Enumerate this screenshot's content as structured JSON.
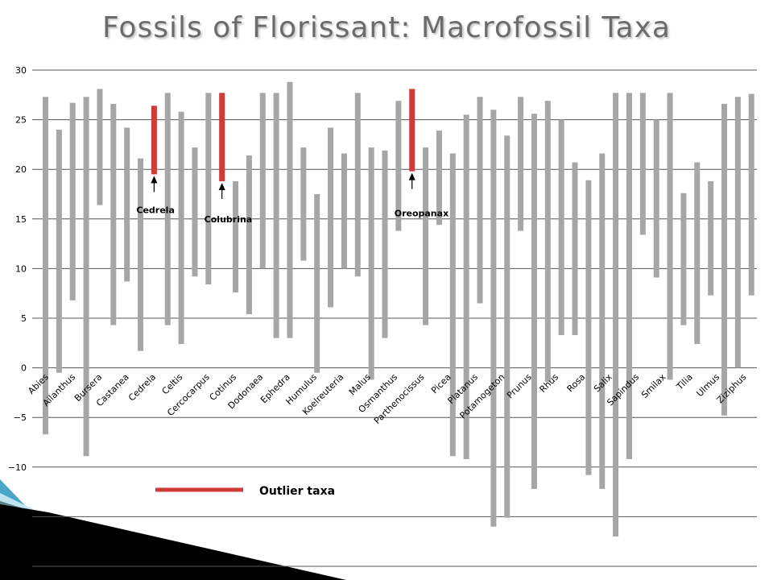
{
  "slide": {
    "title": "Fossils of Florissant: Macrofossil Taxa"
  },
  "colors": {
    "normal_bar": "#a6a6a6",
    "outlier_bar": "#d03a3a",
    "gridline": "#555555",
    "decor_blue": "#4aa6c8"
  },
  "chart_data": {
    "type": "bar",
    "subtype": "floating-range",
    "ylim": [
      -20,
      30
    ],
    "ytick_step": 5,
    "grid": "horizontal",
    "categories": [
      "Abies",
      "Ailanthus",
      "Bursera",
      "Castanea",
      "Cedrela",
      "Celtis",
      "Cercocarpus",
      "Cotinus",
      "Dodonaea",
      "Ephedra",
      "Humulus",
      "Koelreuteria",
      "Malus",
      "Osmanthus",
      "Parthenocissus",
      "Picea",
      "Platanus",
      "Potamogeton",
      "Prunus",
      "Rhus",
      "Rosa",
      "Salix",
      "Sapindus",
      "Smilax",
      "Tilia",
      "Ulmus",
      "Ziziphus"
    ],
    "bars": [
      {
        "low": -6.7,
        "high": 27.3
      },
      {
        "low": -0.5,
        "high": 24.0
      },
      {
        "low": 6.8,
        "high": 26.7
      },
      {
        "low": -8.9,
        "high": 27.3
      },
      {
        "low": 16.4,
        "high": 28.1
      },
      {
        "low": 4.3,
        "high": 26.6
      },
      {
        "low": 8.7,
        "high": 24.2
      },
      {
        "low": 1.7,
        "high": 21.1
      },
      {
        "low": 19.5,
        "high": 26.4,
        "outlier": true
      },
      {
        "low": 4.3,
        "high": 27.7
      },
      {
        "low": 2.4,
        "high": 25.8
      },
      {
        "low": 9.2,
        "high": 22.2
      },
      {
        "low": 8.4,
        "high": 27.7
      },
      {
        "low": 18.8,
        "high": 27.7,
        "outlier": true
      },
      {
        "low": 7.6,
        "high": 18.8
      },
      {
        "low": 5.4,
        "high": 21.4
      },
      {
        "low": 10.0,
        "high": 27.7
      },
      {
        "low": 3.0,
        "high": 27.7
      },
      {
        "low": 3.0,
        "high": 28.8
      },
      {
        "low": 10.8,
        "high": 22.2
      },
      {
        "low": -0.5,
        "high": 17.5
      },
      {
        "low": 6.1,
        "high": 24.2
      },
      {
        "low": 10.0,
        "high": 21.6
      },
      {
        "low": 9.2,
        "high": 27.7
      },
      {
        "low": -1.2,
        "high": 22.2
      },
      {
        "low": 3.0,
        "high": 21.9
      },
      {
        "low": 13.8,
        "high": 26.9
      },
      {
        "low": 19.8,
        "high": 28.1,
        "outlier": true
      },
      {
        "low": 4.3,
        "high": 22.2
      },
      {
        "low": 14.4,
        "high": 23.9
      },
      {
        "low": -8.9,
        "high": 21.6
      },
      {
        "low": -9.2,
        "high": 25.5
      },
      {
        "low": 6.5,
        "high": 27.3
      },
      {
        "low": -16.0,
        "high": 26.0
      },
      {
        "low": -15.1,
        "high": 23.4
      },
      {
        "low": 13.8,
        "high": 27.3
      },
      {
        "low": -12.2,
        "high": 25.6
      },
      {
        "low": -1.4,
        "high": 26.9
      },
      {
        "low": 3.3,
        "high": 25.0
      },
      {
        "low": 3.3,
        "high": 20.7
      },
      {
        "low": -10.8,
        "high": 18.9
      },
      {
        "low": -12.2,
        "high": 21.6
      },
      {
        "low": -17.0,
        "high": 27.7
      },
      {
        "low": -9.2,
        "high": 27.7
      },
      {
        "low": 13.4,
        "high": 27.7
      },
      {
        "low": 9.1,
        "high": 25.0
      },
      {
        "low": -1.2,
        "high": 27.7
      },
      {
        "low": 4.3,
        "high": 17.6
      },
      {
        "low": 2.4,
        "high": 20.7
      },
      {
        "low": 7.3,
        "high": 18.8
      },
      {
        "low": -4.8,
        "high": 26.6
      },
      {
        "low": 0.0,
        "high": 27.3
      },
      {
        "low": 7.3,
        "high": 27.6
      }
    ],
    "annotations": [
      {
        "text": "Cedrela",
        "bar_index": 8,
        "label_y": 15.9
      },
      {
        "text": "Colubrina",
        "bar_index": 13,
        "label_y": 15.0
      },
      {
        "text": "Oreopanax",
        "bar_index": 27,
        "label_y": 15.6
      }
    ],
    "legend": {
      "label": "Outlier taxa",
      "position": "bottom-left"
    }
  }
}
